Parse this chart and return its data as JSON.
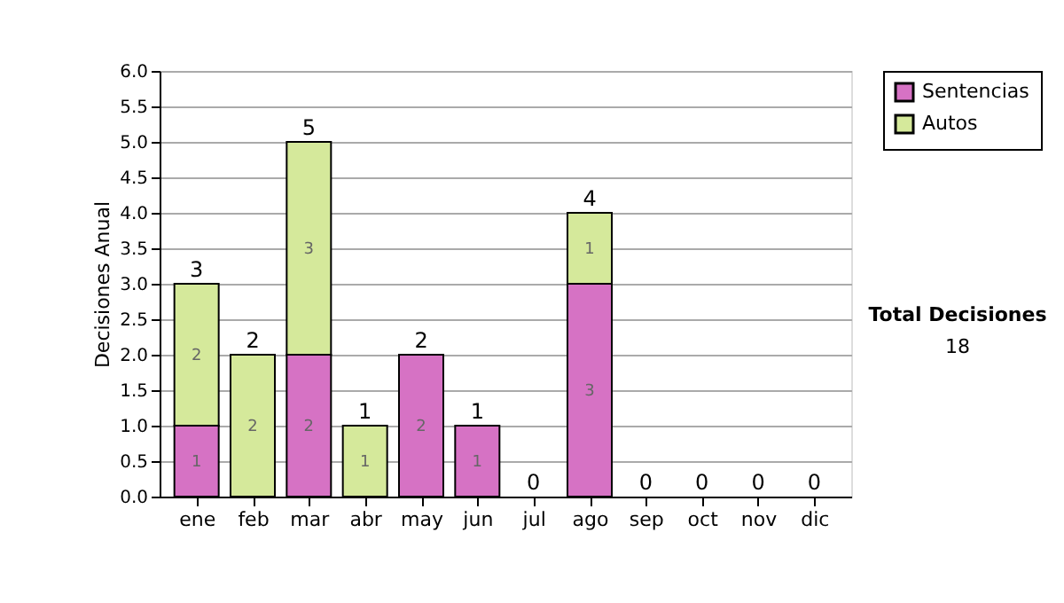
{
  "chart_data": {
    "type": "bar",
    "stacked": true,
    "ylabel": "Decisiones Anual",
    "categories": [
      "ene",
      "feb",
      "mar",
      "abr",
      "may",
      "jun",
      "jul",
      "ago",
      "sep",
      "oct",
      "nov",
      "dic"
    ],
    "series": [
      {
        "name": "Sentencias",
        "color": "#d672c4",
        "values": [
          1,
          0,
          2,
          0,
          2,
          1,
          0,
          3,
          0,
          0,
          0,
          0
        ],
        "value_labels": [
          "1",
          null,
          "2",
          null,
          "2",
          "1",
          null,
          "3",
          null,
          null,
          null,
          null
        ]
      },
      {
        "name": "Autos",
        "color": "#d5e99b",
        "values": [
          2,
          2,
          3,
          1,
          0,
          0,
          0,
          1,
          0,
          0,
          0,
          0
        ],
        "value_labels": [
          "2",
          "2",
          "3",
          "1",
          null,
          null,
          null,
          "1",
          null,
          null,
          null,
          null
        ]
      }
    ],
    "totals": [
      "3",
      "2",
      "5",
      "1",
      "2",
      "1",
      "0",
      "4",
      "0",
      "0",
      "0",
      "0"
    ],
    "ylim": [
      0,
      6
    ],
    "yticks": [
      {
        "value": 0,
        "label": "0.0"
      },
      {
        "value": 0.5,
        "label": "0.5"
      },
      {
        "value": 1,
        "label": "1.0"
      },
      {
        "value": 1.5,
        "label": "1.5"
      },
      {
        "value": 2,
        "label": "2.0"
      },
      {
        "value": 2.5,
        "label": "2.5"
      },
      {
        "value": 3,
        "label": "3.0"
      },
      {
        "value": 3.5,
        "label": "3.5"
      },
      {
        "value": 4,
        "label": "4.0"
      },
      {
        "value": 4.5,
        "label": "4.5"
      },
      {
        "value": 5,
        "label": "5.0"
      },
      {
        "value": 5.5,
        "label": "5.5"
      },
      {
        "value": 6,
        "label": "6.0"
      }
    ],
    "grid": "y",
    "legend": "right",
    "annotations": [
      "Total Decisiones",
      "18"
    ]
  }
}
